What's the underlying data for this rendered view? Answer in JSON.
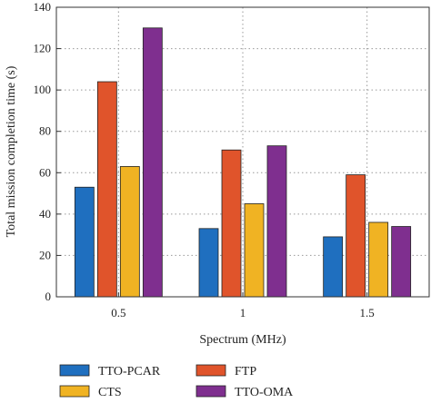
{
  "chart_data": {
    "type": "bar",
    "title": "",
    "xlabel": "Spectrum (MHz)",
    "ylabel": "Total mission completion time (s)",
    "categories": [
      "0.5",
      "1",
      "1.5"
    ],
    "ylim": [
      0,
      140
    ],
    "yticks": [
      "0",
      "20",
      "40",
      "60",
      "80",
      "100",
      "120",
      "140"
    ],
    "grid": "dotted horizontal and vertical",
    "legend_position": "bottom",
    "series": [
      {
        "name": "TTO-PCAR",
        "color": "#1f6fbf",
        "values": [
          53,
          33,
          29
        ]
      },
      {
        "name": "FTP",
        "color": "#e0542b",
        "values": [
          104,
          71,
          59
        ]
      },
      {
        "name": "CTS",
        "color": "#f0b323",
        "values": [
          63,
          45,
          36
        ]
      },
      {
        "name": "TTO-OMA",
        "color": "#7f2f8f",
        "values": [
          130,
          73,
          34
        ]
      }
    ]
  }
}
